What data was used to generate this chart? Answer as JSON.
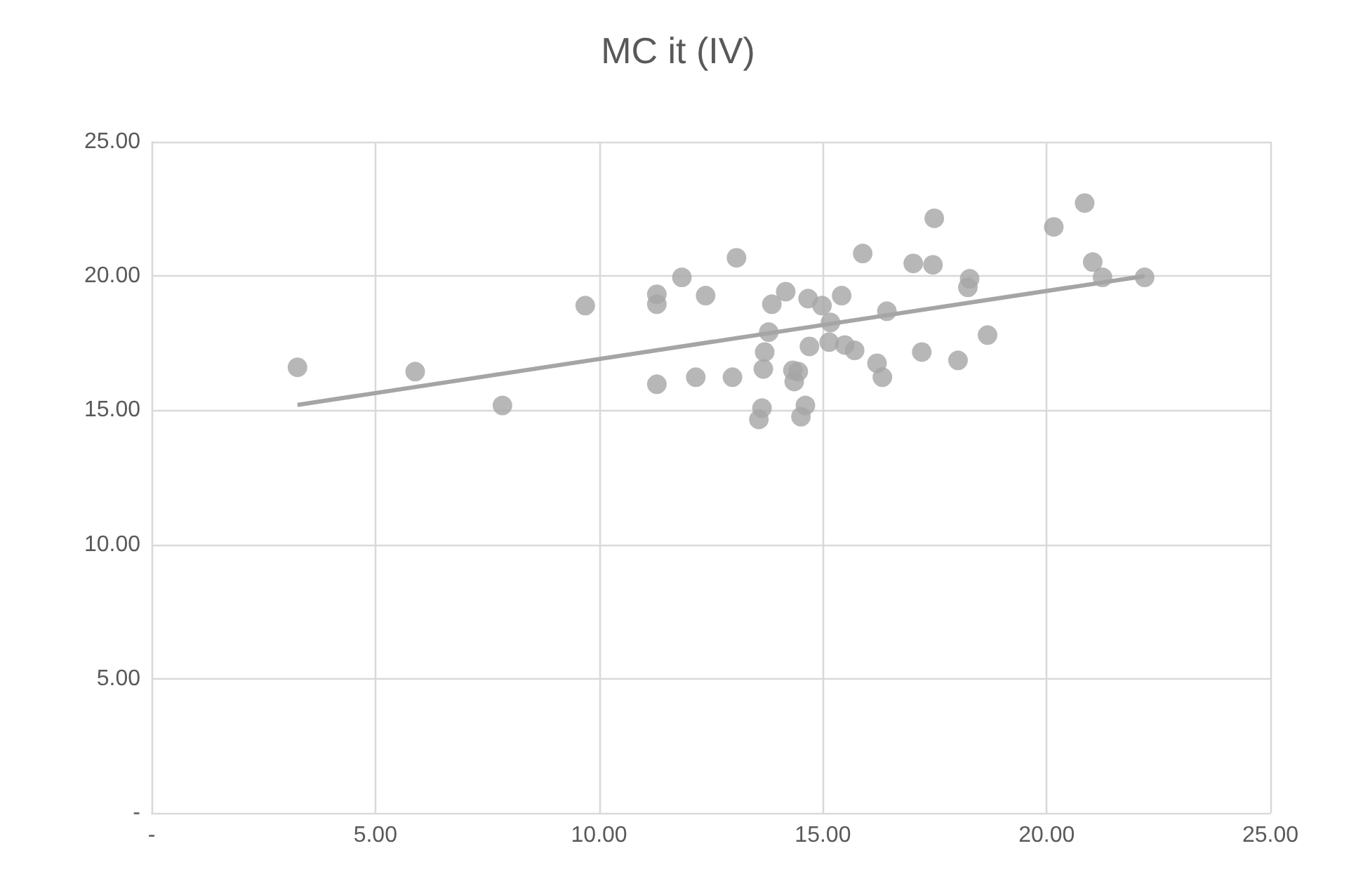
{
  "chart_data": {
    "type": "scatter",
    "title": "MC it (IV)",
    "x": [
      3.26,
      5.89,
      7.84,
      9.69,
      11.29,
      11.29,
      11.85,
      12.38,
      13.07,
      11.29,
      12.16,
      12.98,
      13.86,
      14.17,
      14.67,
      14.98,
      15.42,
      15.89,
      17.02,
      17.46,
      17.49,
      13.79,
      13.7,
      13.67,
      13.64,
      13.57,
      14.33,
      14.45,
      14.36,
      14.61,
      14.51,
      14.7,
      15.17,
      15.14,
      15.49,
      15.71,
      16.43,
      16.21,
      16.33,
      17.21,
      18.28,
      18.24,
      18.02,
      18.68,
      20.16,
      20.85,
      21.03,
      21.25,
      22.19
    ],
    "series": [
      {
        "marker": "circle",
        "color": "#a5a5a5",
        "values": [
          16.6,
          16.44,
          15.18,
          18.9,
          19.32,
          18.95,
          19.95,
          19.27,
          20.68,
          15.97,
          16.23,
          16.23,
          18.95,
          19.42,
          19.16,
          18.9,
          19.27,
          20.84,
          20.47,
          20.42,
          22.15,
          17.91,
          17.17,
          16.54,
          15.08,
          14.66,
          16.49,
          16.44,
          16.07,
          15.18,
          14.76,
          17.38,
          18.27,
          17.54,
          17.43,
          17.23,
          18.69,
          16.75,
          16.23,
          17.17,
          19.9,
          19.58,
          16.86,
          17.8,
          21.83,
          22.72,
          20.52,
          19.95,
          19.95
        ]
      },
      {
        "type": "line",
        "marker": "none",
        "color": "#a5a5a5",
        "x": [
          3.26,
          22.19
        ],
        "values": [
          15.2,
          20.0
        ]
      }
    ],
    "xlim": [
      0,
      25
    ],
    "ylim": [
      0,
      25
    ],
    "xticks": [
      {
        "value": 0,
        "label": "-"
      },
      {
        "value": 5,
        "label": "5.00"
      },
      {
        "value": 10,
        "label": "10.00"
      },
      {
        "value": 15,
        "label": "15.00"
      },
      {
        "value": 20,
        "label": "20.00"
      },
      {
        "value": 25,
        "label": "25.00"
      }
    ],
    "yticks": [
      {
        "value": 0,
        "label": "-"
      },
      {
        "value": 5,
        "label": "5.00"
      },
      {
        "value": 10,
        "label": "10.00"
      },
      {
        "value": 15,
        "label": "15.00"
      },
      {
        "value": 20,
        "label": "20.00"
      },
      {
        "value": 25,
        "label": "25.00"
      }
    ],
    "grid": true
  }
}
